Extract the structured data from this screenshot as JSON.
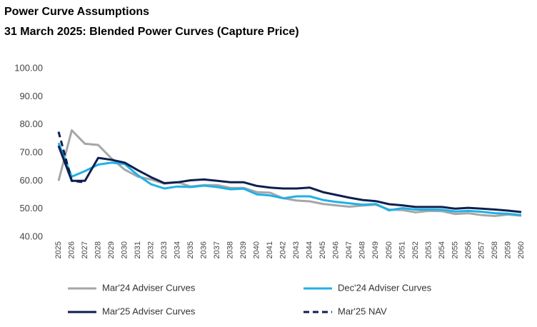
{
  "chart_data": {
    "type": "line",
    "title": "Power Curve Assumptions",
    "subtitle": "31 March 2025: Blended Power Curves (Capture Price)",
    "categories": [
      "2025",
      "2026",
      "2027",
      "2028",
      "2029",
      "2030",
      "2031",
      "2032",
      "2033",
      "2034",
      "2035",
      "2036",
      "2037",
      "2038",
      "2039",
      "2040",
      "2041",
      "2042",
      "2043",
      "2044",
      "2045",
      "2046",
      "2047",
      "2048",
      "2049",
      "2050",
      "2051",
      "2052",
      "2053",
      "2054",
      "2055",
      "2056",
      "2057",
      "2058",
      "2059",
      "2060"
    ],
    "series": [
      {
        "name": "Mar'24 Adviser Curves",
        "color": "#a6a6a6",
        "dash": false,
        "values": [
          60,
          78,
          73.2,
          72.8,
          68,
          64,
          61.5,
          60.5,
          59,
          59.5,
          58,
          58.5,
          58.5,
          57.5,
          57.5,
          56,
          55.8,
          53.8,
          53,
          52.7,
          51.8,
          51.3,
          50.8,
          51.2,
          51.5,
          49.8,
          49.6,
          48.8,
          49.3,
          49.2,
          48.2,
          48.5,
          47.8,
          47.5,
          48,
          47.6
        ]
      },
      {
        "name": "Dec'24 Adviser Curves",
        "color": "#1fb0e8",
        "dash": false,
        "values": [
          73.5,
          61.5,
          63.5,
          65.8,
          66.5,
          66,
          62,
          58.8,
          57.3,
          58,
          57.8,
          58.3,
          57.8,
          57,
          57.2,
          55.2,
          54.8,
          53.8,
          54.5,
          54.5,
          53.2,
          52.5,
          52,
          51.5,
          51.8,
          49.5,
          50.3,
          49.8,
          49.8,
          49.7,
          49.1,
          49.3,
          49,
          48.5,
          48.3,
          47.8
        ]
      },
      {
        "name": "Mar'25 Adviser Curves",
        "color": "#0d1f4f",
        "dash": false,
        "values": [
          72.5,
          60,
          60,
          68.2,
          67.5,
          66.5,
          63.8,
          61.3,
          59.2,
          59.5,
          60.2,
          60.5,
          60,
          59.5,
          59.5,
          58.2,
          57.6,
          57.3,
          57.3,
          57.6,
          56,
          55,
          54,
          53.2,
          52.8,
          51.7,
          51.3,
          50.7,
          50.7,
          50.7,
          50.1,
          50.4,
          50.1,
          49.8,
          49.4,
          48.9
        ]
      },
      {
        "name": "Mar'25 NAV",
        "color": "#0d1f4f",
        "dash": true,
        "values": [
          77.5,
          60,
          59.5,
          null,
          null,
          null,
          null,
          null,
          null,
          null,
          null,
          null,
          null,
          null,
          null,
          null,
          null,
          null,
          null,
          null,
          null,
          null,
          null,
          null,
          null,
          null,
          null,
          null,
          null,
          null,
          null,
          null,
          null,
          null,
          null,
          null
        ]
      }
    ],
    "ylim": [
      40,
      100
    ],
    "yticks": [
      {
        "value": 40,
        "label": "40.00"
      },
      {
        "value": 50,
        "label": "50.00"
      },
      {
        "value": 60,
        "label": "60.00"
      },
      {
        "value": 70,
        "label": "70.00"
      },
      {
        "value": 80,
        "label": "80.00"
      },
      {
        "value": 90,
        "label": "90.00"
      },
      {
        "value": 100,
        "label": "100.00"
      }
    ],
    "grid": false,
    "legend": "bottom"
  }
}
